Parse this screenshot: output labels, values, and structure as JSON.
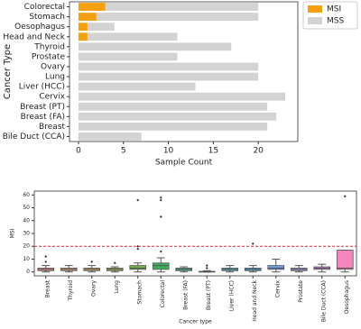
{
  "chart_data": [
    {
      "type": "barh_stacked",
      "xlabel": "Sample Count",
      "ylabel": "Cancer Type",
      "categories": [
        "Colorectal",
        "Stomach",
        "Oesophagus",
        "Head and Neck",
        "Thyroid",
        "Prostate",
        "Ovary",
        "Lung",
        "Liver (HCC)",
        "Cervix",
        "Breast (PT)",
        "Breast (FA)",
        "Breast",
        "Bile Duct (CCA)"
      ],
      "series": [
        {
          "name": "MSI",
          "color": "#f5a011",
          "values": [
            3,
            2,
            1,
            1,
            0,
            0,
            0,
            0,
            0,
            0,
            0,
            0,
            0,
            0
          ]
        },
        {
          "name": "MSS",
          "color": "#d3d3d3",
          "values": [
            17,
            18,
            3,
            10,
            17,
            11,
            20,
            20,
            13,
            23,
            21,
            22,
            21,
            7
          ]
        }
      ],
      "xlim": [
        -1,
        24.4
      ],
      "xticks": [
        0,
        5,
        10,
        15,
        20
      ],
      "legend": "outside-upper-right"
    },
    {
      "type": "box",
      "xlabel": "Cancer type",
      "ylabel": "MSI",
      "categories": [
        "Breast",
        "Thyroid",
        "Ovary",
        "Lung",
        "Stomach",
        "Colorectal",
        "Breast (FA)",
        "Breast (PT)",
        "Liver (HCC)",
        "Head and Neck",
        "Cervix",
        "Prostate",
        "Bile Duct (CCA)",
        "Oesophagus"
      ],
      "colors": [
        "#f08a80",
        "#d9a070",
        "#c9a84a",
        "#a9ad48",
        "#72b04a",
        "#3cae5e",
        "#3cad88",
        "#3aab9f",
        "#3aa9b6",
        "#3fa3cc",
        "#6e9de6",
        "#a48fe6",
        "#d383de",
        "#f485bd"
      ],
      "boxes": [
        {
          "whislo": 0,
          "q1": 1,
          "med": 2,
          "q3": 3,
          "whishi": 5,
          "fliers": [
            8,
            12
          ]
        },
        {
          "whislo": 0,
          "q1": 1,
          "med": 2,
          "q3": 3,
          "whishi": 5,
          "fliers": []
        },
        {
          "whislo": 0,
          "q1": 1,
          "med": 2,
          "q3": 3,
          "whishi": 5,
          "fliers": [
            8
          ]
        },
        {
          "whislo": 0,
          "q1": 1,
          "med": 2,
          "q3": 3,
          "whishi": 4,
          "fliers": [
            7
          ]
        },
        {
          "whislo": 0,
          "q1": 2,
          "med": 3,
          "q3": 5,
          "whishi": 7,
          "fliers": [
            18,
            20,
            56
          ]
        },
        {
          "whislo": 0,
          "q1": 2,
          "med": 5,
          "q3": 7,
          "whishi": 11,
          "fliers": [
            16,
            43,
            56,
            58
          ]
        },
        {
          "whislo": 0,
          "q1": 1,
          "med": 2,
          "q3": 3,
          "whishi": 4,
          "fliers": []
        },
        {
          "whislo": 0,
          "q1": 0,
          "med": 0,
          "q3": 0.5,
          "whishi": 1,
          "fliers": [
            3,
            5
          ]
        },
        {
          "whislo": 0,
          "q1": 1,
          "med": 2,
          "q3": 3,
          "whishi": 5,
          "fliers": []
        },
        {
          "whislo": 0,
          "q1": 1,
          "med": 2,
          "q3": 3,
          "whishi": 5,
          "fliers": [
            22
          ]
        },
        {
          "whislo": 0,
          "q1": 2,
          "med": 3,
          "q3": 5,
          "whishi": 10,
          "fliers": []
        },
        {
          "whislo": 0,
          "q1": 1,
          "med": 2,
          "q3": 3,
          "whishi": 5,
          "fliers": []
        },
        {
          "whislo": 0,
          "q1": 2,
          "med": 3,
          "q3": 4,
          "whishi": 6,
          "fliers": []
        },
        {
          "whislo": 0,
          "q1": 2,
          "med": 3,
          "q3": 17,
          "whishi": 17,
          "fliers": [
            59
          ]
        }
      ],
      "ylim": [
        -3,
        63
      ],
      "yticks": [
        0,
        10,
        20,
        30,
        40,
        50,
        60
      ],
      "hline": {
        "value": 20,
        "color": "#e03030"
      }
    }
  ]
}
